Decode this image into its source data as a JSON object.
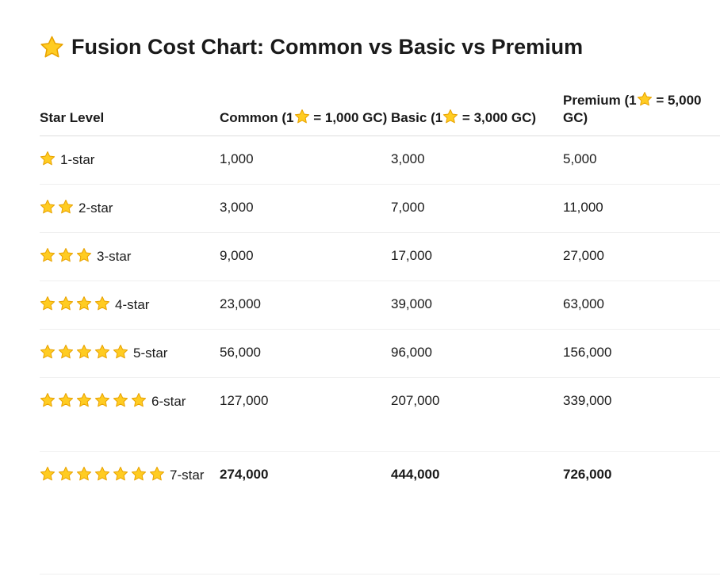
{
  "title": "Fusion Cost Chart: Common vs Basic vs Premium",
  "title_icon": "star-emoji",
  "headers": {
    "star_level": "Star Level",
    "common": "Common (1⭐ = 1,000 GC)",
    "basic": "Basic (1⭐ = 3,000 GC)",
    "premium": "Premium (1⭐ = 5,000 GC)"
  },
  "rows": [
    {
      "stars": 1,
      "label": "1-star",
      "common": "1,000",
      "basic": "3,000",
      "premium": "5,000",
      "bold": false
    },
    {
      "stars": 2,
      "label": "2-star",
      "common": "3,000",
      "basic": "7,000",
      "premium": "11,000",
      "bold": false
    },
    {
      "stars": 3,
      "label": "3-star",
      "common": "9,000",
      "basic": "17,000",
      "premium": "27,000",
      "bold": false
    },
    {
      "stars": 4,
      "label": "4-star",
      "common": "23,000",
      "basic": "39,000",
      "premium": "63,000",
      "bold": false
    },
    {
      "stars": 5,
      "label": "5-star",
      "common": "56,000",
      "basic": "96,000",
      "premium": "156,000",
      "bold": false
    },
    {
      "stars": 6,
      "label": "6-star",
      "common": "127,000",
      "basic": "207,000",
      "premium": "339,000",
      "bold": false
    },
    {
      "stars": 7,
      "label": "7-star",
      "common": "274,000",
      "basic": "444,000",
      "premium": "726,000",
      "bold": true
    }
  ],
  "colors": {
    "star_fill": "#ffcc22",
    "star_stroke": "#e8a200"
  }
}
